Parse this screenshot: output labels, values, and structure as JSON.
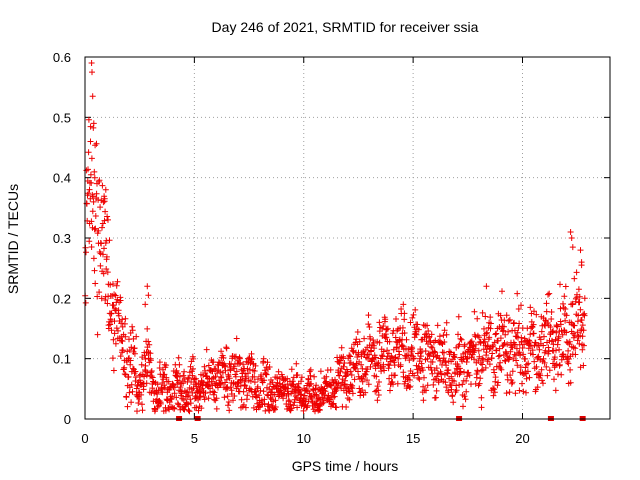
{
  "chart_data": {
    "type": "scatter",
    "title": "Day 246 of 2021, SRMTID for receiver ssia",
    "xlabel": "GPS time / hours",
    "ylabel": "SRMTID / TECUs",
    "xlim": [
      0,
      24
    ],
    "ylim": [
      0,
      0.6
    ],
    "xticks": [
      "0",
      "5",
      "10",
      "15",
      "20"
    ],
    "xtick_values": [
      0,
      5,
      10,
      15,
      20
    ],
    "yticks": [
      "0",
      "0.1",
      "0.2",
      "0.3",
      "0.4",
      "0.5",
      "0.6"
    ],
    "ytick_values": [
      0,
      0.1,
      0.2,
      0.3,
      0.4,
      0.5,
      0.6
    ],
    "grid": true,
    "marker": "plus",
    "series_color": "#ee0000",
    "trend": [
      [
        0.0,
        0.2
      ],
      [
        0.15,
        0.35
      ],
      [
        0.35,
        0.42
      ],
      [
        0.6,
        0.3
      ],
      [
        0.9,
        0.26
      ],
      [
        1.2,
        0.19
      ],
      [
        1.6,
        0.14
      ],
      [
        2.0,
        0.1
      ],
      [
        2.4,
        0.06
      ],
      [
        2.8,
        0.09
      ],
      [
        3.2,
        0.05
      ],
      [
        4.0,
        0.045
      ],
      [
        5.0,
        0.05
      ],
      [
        6.0,
        0.07
      ],
      [
        7.0,
        0.075
      ],
      [
        8.0,
        0.055
      ],
      [
        9.0,
        0.045
      ],
      [
        10.0,
        0.04
      ],
      [
        11.0,
        0.04
      ],
      [
        11.5,
        0.06
      ],
      [
        12.0,
        0.07
      ],
      [
        13.0,
        0.1
      ],
      [
        14.0,
        0.11
      ],
      [
        15.0,
        0.11
      ],
      [
        16.0,
        0.1
      ],
      [
        17.0,
        0.085
      ],
      [
        18.0,
        0.11
      ],
      [
        19.0,
        0.12
      ],
      [
        20.0,
        0.11
      ],
      [
        21.0,
        0.12
      ],
      [
        22.0,
        0.14
      ],
      [
        22.8,
        0.17
      ]
    ],
    "spread": [
      [
        0.0,
        0.05
      ],
      [
        0.5,
        0.07
      ],
      [
        1.0,
        0.05
      ],
      [
        2.0,
        0.035
      ],
      [
        3.0,
        0.02
      ],
      [
        5.0,
        0.02
      ],
      [
        7.0,
        0.025
      ],
      [
        9.0,
        0.018
      ],
      [
        11.0,
        0.015
      ],
      [
        12.0,
        0.025
      ],
      [
        14.0,
        0.03
      ],
      [
        17.0,
        0.03
      ],
      [
        19.0,
        0.035
      ],
      [
        22.0,
        0.035
      ],
      [
        22.8,
        0.04
      ]
    ],
    "highlights": [
      [
        0.3,
        0.59
      ],
      [
        0.32,
        0.575
      ],
      [
        0.35,
        0.535
      ],
      [
        0.25,
        0.46
      ],
      [
        0.4,
        0.49
      ],
      [
        0.45,
        0.4
      ],
      [
        0.95,
        0.38
      ],
      [
        0.9,
        0.365
      ],
      [
        1.05,
        0.33
      ],
      [
        2.85,
        0.22
      ],
      [
        2.75,
        0.19
      ],
      [
        2.9,
        0.205
      ],
      [
        14.55,
        0.19
      ],
      [
        14.6,
        0.175
      ],
      [
        18.35,
        0.22
      ],
      [
        22.2,
        0.31
      ],
      [
        22.25,
        0.3
      ],
      [
        22.3,
        0.285
      ],
      [
        22.65,
        0.28
      ],
      [
        22.7,
        0.26
      ],
      [
        22.7,
        0.255
      ],
      [
        22.85,
        0.2
      ],
      [
        1.7,
        0.165
      ]
    ],
    "zero_markers": [
      4.3,
      5.15,
      17.1,
      21.3,
      22.75
    ],
    "point_count": 1800
  }
}
